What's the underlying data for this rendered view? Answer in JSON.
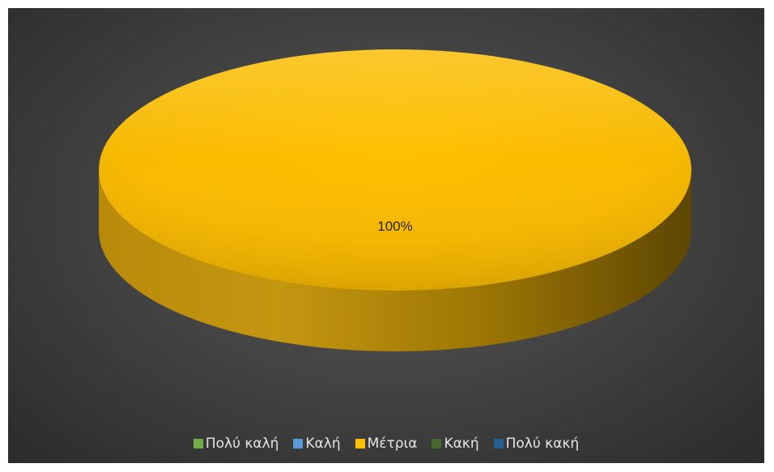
{
  "chart_data": {
    "type": "pie",
    "title": "",
    "categories": [
      "Πολύ καλή",
      "Καλή",
      "Μέτρια",
      "Κακή",
      "Πολύ κακή"
    ],
    "values": [
      0,
      0,
      100,
      0,
      0
    ],
    "data_labels": [
      "",
      "",
      "100%",
      "",
      ""
    ],
    "colors": [
      "#70AD47",
      "#5B9BD5",
      "#FFC000",
      "#43682B",
      "#255E91"
    ],
    "legend_position": "bottom",
    "style": "3d-pie"
  }
}
